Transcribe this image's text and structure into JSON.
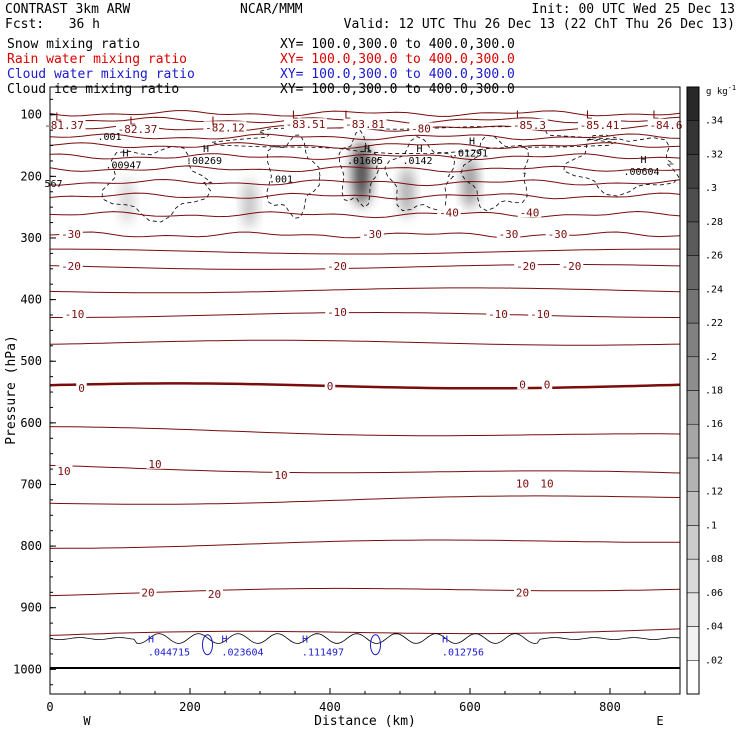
{
  "header": {
    "model": "CONTRAST  3km ARW",
    "center": "NCAR/MMM",
    "init": "Init: 00 UTC Wed 25 Dec 13",
    "fcst_label": "Fcst:",
    "fcst_value": "36 h",
    "valid": "Valid: 12 UTC Thu 26 Dec 13 (22 ChT Thu 26 Dec 13)"
  },
  "legend": [
    {
      "name": "Snow mixing ratio",
      "xy": "XY= 100.0,300.0 to 400.0,300.0",
      "color": "#000000"
    },
    {
      "name": "Rain water mixing ratio",
      "xy": "XY= 100.0,300.0 to 400.0,300.0",
      "color": "#dd0000"
    },
    {
      "name": "Cloud water mixing ratio",
      "xy": "XY= 100.0,300.0 to 400.0,300.0",
      "color": "#1a1ad0"
    },
    {
      "name": "Cloud ice mixing ratio",
      "xy": "XY= 100.0,300.0 to 400.0,300.0",
      "color": "#000000"
    }
  ],
  "colors": {
    "temperature": "#7a0c0c",
    "cloud_water": "#1a1ad0",
    "axis": "#000000"
  },
  "chart_data": {
    "type": "contour-cross-section",
    "xlabel": "Distance (km)",
    "ylabel": "Pressure (hPa)",
    "xlim": [
      0,
      900
    ],
    "ylim": [
      1040,
      55
    ],
    "x_ticks": [
      "0",
      "200",
      "400",
      "600",
      "800"
    ],
    "y_ticks": [
      "100",
      "200",
      "300",
      "400",
      "500",
      "600",
      "700",
      "800",
      "900",
      "1000"
    ],
    "direction_left": "W",
    "direction_right": "E",
    "colorbar": {
      "unit": "g kg",
      "unit_exp": "-1",
      "ticks": [
        ".02",
        ".04",
        ".06",
        ".08",
        ".1",
        ".12",
        ".14",
        ".16",
        ".18",
        ".2",
        ".22",
        ".24",
        ".26",
        ".28",
        ".3",
        ".32",
        ".34"
      ],
      "range": [
        0,
        0.36
      ]
    },
    "temperature_labels": [
      {
        "x": 20,
        "p": 118,
        "text": "-81.37"
      },
      {
        "x": 125,
        "p": 125,
        "text": "-82.37"
      },
      {
        "x": 250,
        "p": 122,
        "text": "-82.12"
      },
      {
        "x": 365,
        "p": 117,
        "text": "-83.51"
      },
      {
        "x": 450,
        "p": 117,
        "text": "-83.81"
      },
      {
        "x": 530,
        "p": 124,
        "text": "-80"
      },
      {
        "x": 685,
        "p": 118,
        "text": "-85.3"
      },
      {
        "x": 785,
        "p": 118,
        "text": "-85.41"
      },
      {
        "x": 880,
        "p": 118,
        "text": "-84.6"
      },
      {
        "x": 570,
        "p": 260,
        "text": "-40"
      },
      {
        "x": 685,
        "p": 260,
        "text": "-40"
      },
      {
        "x": 30,
        "p": 295,
        "text": "-30"
      },
      {
        "x": 460,
        "p": 295,
        "text": "-30"
      },
      {
        "x": 655,
        "p": 295,
        "text": "-30"
      },
      {
        "x": 725,
        "p": 295,
        "text": "-30"
      },
      {
        "x": 30,
        "p": 347,
        "text": "-20"
      },
      {
        "x": 410,
        "p": 347,
        "text": "-20"
      },
      {
        "x": 680,
        "p": 347,
        "text": "-20"
      },
      {
        "x": 745,
        "p": 347,
        "text": "-20"
      },
      {
        "x": 35,
        "p": 425,
        "text": "-10"
      },
      {
        "x": 410,
        "p": 422,
        "text": "-10"
      },
      {
        "x": 640,
        "p": 425,
        "text": "-10"
      },
      {
        "x": 700,
        "p": 425,
        "text": "-10"
      },
      {
        "x": 45,
        "p": 545,
        "text": "0"
      },
      {
        "x": 400,
        "p": 542,
        "text": "0"
      },
      {
        "x": 675,
        "p": 539,
        "text": "0"
      },
      {
        "x": 710,
        "p": 539,
        "text": "0"
      },
      {
        "x": 20,
        "p": 680,
        "text": "10"
      },
      {
        "x": 150,
        "p": 668,
        "text": "10"
      },
      {
        "x": 330,
        "p": 686,
        "text": "10"
      },
      {
        "x": 675,
        "p": 700,
        "text": "10"
      },
      {
        "x": 710,
        "p": 700,
        "text": "10"
      },
      {
        "x": 140,
        "p": 877,
        "text": "20"
      },
      {
        "x": 235,
        "p": 879,
        "text": "20"
      },
      {
        "x": 675,
        "p": 877,
        "text": "20"
      }
    ],
    "ice_extrema": [
      {
        "x": 85,
        "p": 136,
        "text": ".001"
      },
      {
        "x": 105,
        "p": 182,
        "text": ".00947",
        "mark": "H"
      },
      {
        "x": 220,
        "p": 175,
        "text": ".00269",
        "mark": "H"
      },
      {
        "x": 330,
        "p": 205,
        "text": ".001"
      },
      {
        "x": 450,
        "p": 175,
        "text": ".01605",
        "mark": "H"
      },
      {
        "x": 525,
        "p": 175,
        "text": ".0142",
        "mark": "H"
      },
      {
        "x": 600,
        "p": 163,
        "text": ".01291",
        "mark": "H"
      },
      {
        "x": 845,
        "p": 193,
        "text": ".00604",
        "mark": "H"
      },
      {
        "x": 5,
        "p": 212,
        "text": "567"
      }
    ],
    "cloud_water_extrema": [
      {
        "x": 170,
        "p": 973,
        "text": ".044715",
        "mark": "H"
      },
      {
        "x": 275,
        "p": 973,
        "text": ".023604",
        "mark": "H"
      },
      {
        "x": 390,
        "p": 973,
        "text": ".111497",
        "mark": "H"
      },
      {
        "x": 590,
        "p": 973,
        "text": ".012756",
        "mark": "H"
      }
    ],
    "low_markers": [
      {
        "x": 12,
        "p": 103,
        "text": "L"
      },
      {
        "x": 118,
        "p": 109,
        "text": "L"
      },
      {
        "x": 235,
        "p": 109,
        "text": "L"
      },
      {
        "x": 350,
        "p": 100,
        "text": "L"
      },
      {
        "x": 425,
        "p": 100,
        "text": "L"
      },
      {
        "x": 670,
        "p": 100,
        "text": "L"
      },
      {
        "x": 770,
        "p": 100,
        "text": "L"
      },
      {
        "x": 865,
        "p": 100,
        "text": "L"
      }
    ],
    "snow_maxima": [
      {
        "x": 445,
        "p": 195,
        "value": 0.25
      },
      {
        "x": 600,
        "p": 210,
        "value": 0.1
      },
      {
        "x": 510,
        "p": 225,
        "value": 0.08
      },
      {
        "x": 285,
        "p": 245,
        "value": 0.06
      },
      {
        "x": 110,
        "p": 240,
        "value": 0.04
      }
    ]
  }
}
